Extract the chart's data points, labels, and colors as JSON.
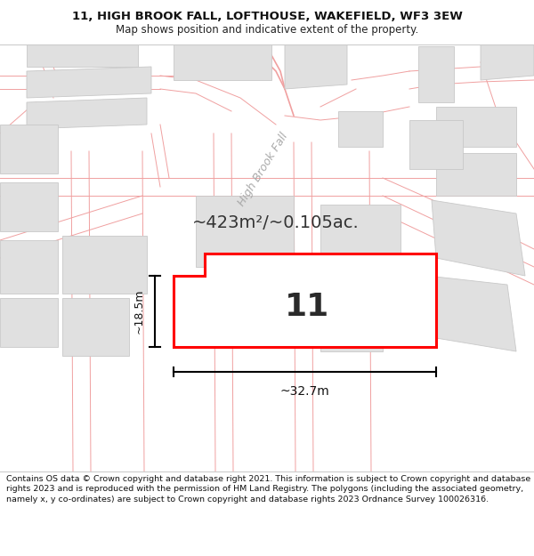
{
  "title_line1": "11, HIGH BROOK FALL, LOFTHOUSE, WAKEFIELD, WF3 3EW",
  "title_line2": "Map shows position and indicative extent of the property.",
  "copyright_text": "Contains OS data © Crown copyright and database right 2021. This information is subject to Crown copyright and database rights 2023 and is reproduced with the permission of HM Land Registry. The polygons (including the associated geometry, namely x, y co-ordinates) are subject to Crown copyright and database rights 2023 Ordnance Survey 100026316.",
  "bg_color": "#ffffff",
  "road_color": "#f0a0a0",
  "gray_block_fill": "#e0e0e0",
  "gray_block_edge": "#c8c8c8",
  "red_outline": "#ff0000",
  "area_text": "~423m²/~0.105ac.",
  "house_number": "11",
  "street_label": "High Brook Fall",
  "width_label": "~32.7m",
  "height_label": "~18.5m",
  "title_fontsize": 9.5,
  "subtitle_fontsize": 8.5,
  "footer_fontsize": 6.8
}
